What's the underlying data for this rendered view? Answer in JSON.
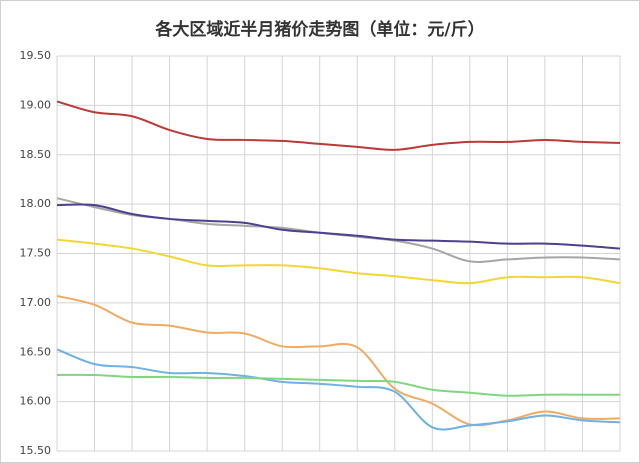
{
  "chart_data": {
    "type": "line",
    "title": "各大区域近半月猪价走势图（单位：元/斤）",
    "categories": [
      null,
      null,
      null,
      null,
      null,
      null,
      null,
      null,
      null,
      null,
      null,
      null,
      null,
      null,
      null,
      null
    ],
    "ylim": [
      15.5,
      19.5
    ],
    "yticks": [
      {
        "value": 15.5,
        "label": "15.50"
      },
      {
        "value": 16,
        "label": "16.00"
      },
      {
        "value": 16.5,
        "label": "16.50"
      },
      {
        "value": 17,
        "label": "17.00"
      },
      {
        "value": 17.5,
        "label": "17.50"
      },
      {
        "value": 18,
        "label": "18.00"
      },
      {
        "value": 18.5,
        "label": "18.50"
      },
      {
        "value": 19,
        "label": "19.00"
      },
      {
        "value": 19.5,
        "label": "19.50"
      }
    ],
    "grid": true,
    "series": [
      {
        "color": "#b93a36",
        "values": [
          19.04,
          18.93,
          18.89,
          18.75,
          18.66,
          18.65,
          18.64,
          18.61,
          18.58,
          18.55,
          18.6,
          18.63,
          18.63,
          18.65,
          18.63,
          18.62
        ]
      },
      {
        "color": "#a6a6a6",
        "values": [
          18.06,
          17.97,
          17.89,
          17.85,
          17.8,
          17.78,
          17.76,
          17.71,
          17.67,
          17.63,
          17.55,
          17.42,
          17.44,
          17.46,
          17.46,
          17.44
        ]
      },
      {
        "color": "#4e3f8f",
        "values": [
          17.99,
          17.99,
          17.9,
          17.85,
          17.83,
          17.81,
          17.74,
          17.71,
          17.68,
          17.64,
          17.63,
          17.62,
          17.6,
          17.6,
          17.58,
          17.55
        ]
      },
      {
        "color": "#f2d633",
        "values": [
          17.64,
          17.6,
          17.55,
          17.47,
          17.38,
          17.38,
          17.38,
          17.35,
          17.3,
          17.27,
          17.23,
          17.2,
          17.26,
          17.26,
          17.26,
          17.2
        ]
      },
      {
        "color": "#f0aa62",
        "values": [
          17.07,
          16.98,
          16.8,
          16.77,
          16.7,
          16.69,
          16.56,
          16.56,
          16.55,
          16.13,
          15.98,
          15.77,
          15.81,
          15.9,
          15.83,
          15.83
        ]
      },
      {
        "color": "#6fb1e2",
        "values": [
          16.53,
          16.38,
          16.35,
          16.29,
          16.29,
          16.26,
          16.2,
          16.18,
          16.15,
          16.1,
          15.74,
          15.76,
          15.8,
          15.86,
          15.81,
          15.79
        ]
      },
      {
        "color": "#80d67f",
        "values": [
          16.27,
          16.27,
          16.25,
          16.25,
          16.24,
          16.24,
          16.23,
          16.22,
          16.21,
          16.2,
          16.12,
          16.09,
          16.06,
          16.07,
          16.07,
          16.07
        ]
      }
    ]
  }
}
